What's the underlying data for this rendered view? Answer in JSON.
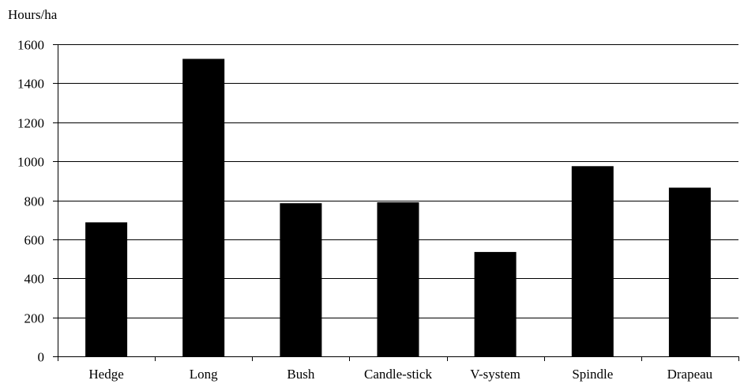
{
  "chart_data": {
    "type": "bar",
    "title": "",
    "xlabel": "",
    "ylabel": "Hours/ha",
    "categories": [
      "Hedge",
      "Long",
      "Bush",
      "Candle-stick",
      "V-system",
      "Spindle",
      "Drapeau"
    ],
    "values": [
      687,
      1525,
      785,
      790,
      535,
      975,
      865
    ],
    "ylim": [
      0,
      1600
    ],
    "yticks": [
      0,
      200,
      400,
      600,
      800,
      1000,
      1200,
      1400,
      1600
    ],
    "grid": true,
    "legend": "none",
    "colors": {
      "bar": "#000000",
      "grid": "#000000",
      "axis": "#000000"
    }
  }
}
